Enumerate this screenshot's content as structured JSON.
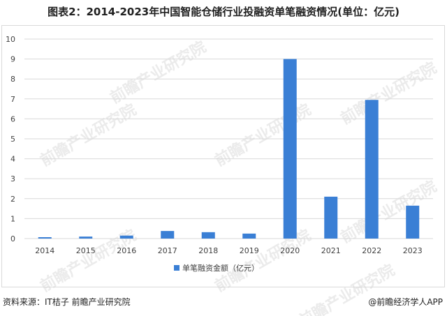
{
  "title": "图表2：2014-2023年中国智能仓储行业投融资单笔融资情况(单位：亿元)",
  "source": "资料来源：IT桔子 前瞻产业研究院",
  "credit": "@前瞻经济学人APP",
  "watermark": "前瞻产业研究院",
  "colors": {
    "bar": "#3a7fd5",
    "grid": "#d9d9d9",
    "axis_text": "#404040"
  },
  "chart_data": {
    "type": "bar",
    "categories": [
      "2014",
      "2015",
      "2016",
      "2017",
      "2018",
      "2019",
      "2020",
      "2021",
      "2022",
      "2023"
    ],
    "series": [
      {
        "name": "单笔融资金额（亿元）",
        "values": [
          0.07,
          0.1,
          0.15,
          0.38,
          0.32,
          0.25,
          9.0,
          2.1,
          6.95,
          1.65
        ]
      }
    ],
    "ylim": [
      0,
      10
    ],
    "yticks": [
      0,
      1,
      2,
      3,
      4,
      5,
      6,
      7,
      8,
      9,
      10
    ],
    "grid": true,
    "legend_position": "bottom-center"
  }
}
